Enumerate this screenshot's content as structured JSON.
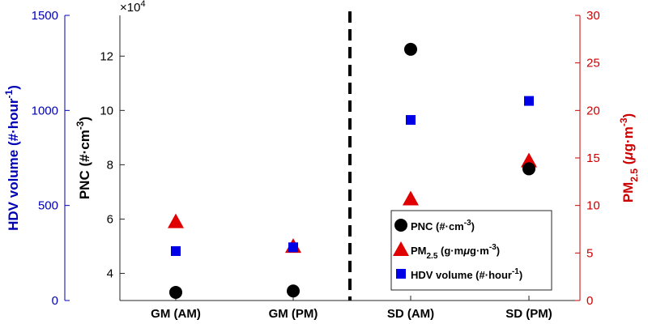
{
  "chart_data": {
    "type": "scatter",
    "categories": [
      "GM (AM)",
      "GM (PM)",
      "SD (AM)",
      "SD (PM)"
    ],
    "divider_after_category": 1,
    "axes": {
      "left_outer": {
        "label": "HDV volume (#·hour⁻¹)",
        "ylim": [
          0,
          1500
        ],
        "ticks": [
          "0",
          "500",
          "1000",
          "1500"
        ],
        "color": "#0000b4"
      },
      "left_inner": {
        "label": "PNC (#·cm⁻³)",
        "ylim": [
          3.0,
          13.5
        ],
        "tick_values": [
          4,
          6,
          8,
          10,
          12
        ],
        "ticks": [
          "4",
          "6",
          "8",
          "10",
          "12"
        ],
        "multiplier": "×10⁴",
        "color": "#000000"
      },
      "right": {
        "label": "PM₂.₅ (μg·m⁻³)",
        "ylim": [
          0,
          30
        ],
        "ticks": [
          "0",
          "5",
          "10",
          "15",
          "20",
          "25",
          "30"
        ],
        "color": "#cc0000"
      }
    },
    "series": [
      {
        "name": "PNC (#·cm⁻³)",
        "axis": "left_inner",
        "marker": "circle",
        "color": "#000000",
        "values": [
          3.3,
          3.35,
          12.25,
          7.85
        ]
      },
      {
        "name": "PM₂.₅ (μg·m⁻³)",
        "axis": "right",
        "marker": "triangle",
        "color": "#e00000",
        "values": [
          8.3,
          5.7,
          10.7,
          14.7
        ]
      },
      {
        "name": "HDV volume (#·hour⁻¹)",
        "axis": "left_outer",
        "marker": "square",
        "color": "#0000e6",
        "values": [
          260,
          280,
          950,
          1050
        ]
      }
    ],
    "legend": {
      "placement": "lower-right",
      "entries": [
        {
          "main": "PNC (#·cm",
          "sup": "-3",
          "tail": ")"
        },
        {
          "main": "PM",
          "sub": "2.5",
          "tail": " (μg·m",
          "sup": "-3",
          "tail2": ")"
        },
        {
          "main": "HDV volume (#·hour",
          "sup": "-1",
          "tail": ")"
        }
      ]
    },
    "grid": false
  }
}
